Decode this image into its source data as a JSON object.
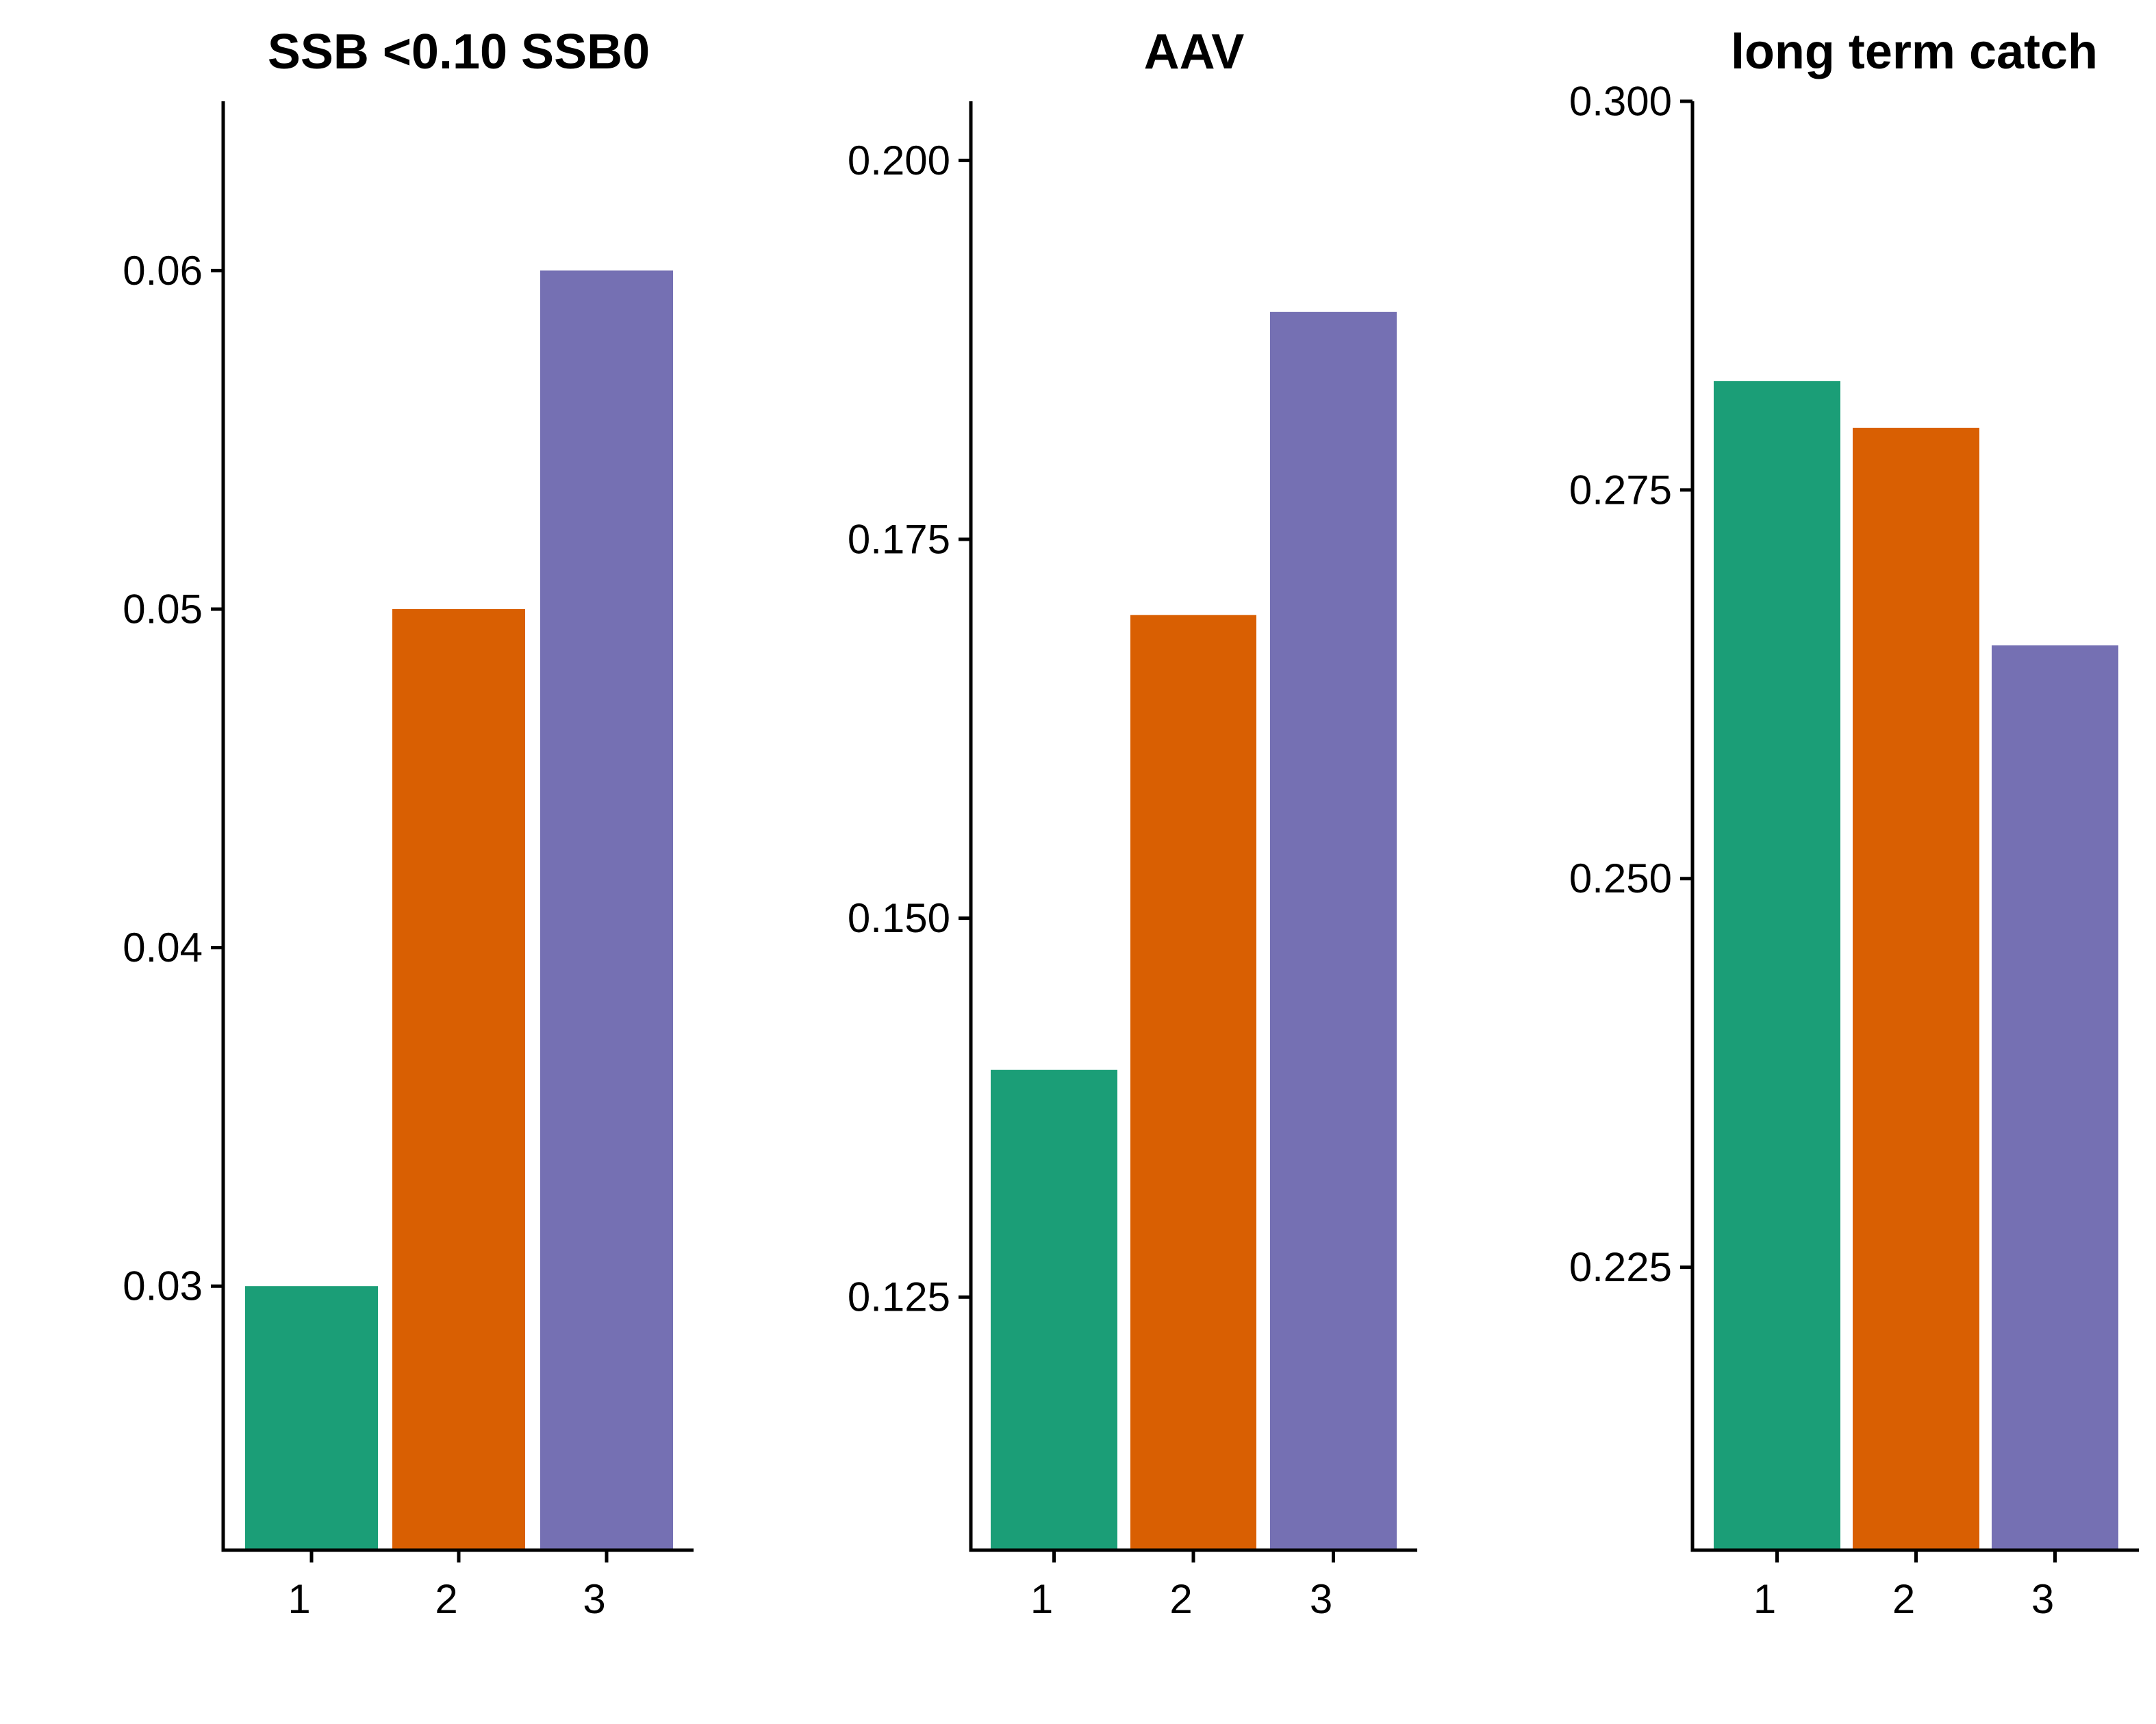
{
  "chart_data": [
    {
      "type": "bar",
      "title": "SSB <0.10 SSB0",
      "xlabel": "",
      "ylabel": "",
      "categories": [
        "1",
        "2",
        "3"
      ],
      "values": [
        0.03,
        0.05,
        0.06
      ],
      "colors": [
        "#1b9e77",
        "#d95f02",
        "#7570b3"
      ],
      "ylim": [
        0.0222,
        0.065
      ],
      "yticks": [
        0.03,
        0.04,
        0.05,
        0.06
      ],
      "ytick_labels": [
        "0.03",
        "0.04",
        "0.05",
        "0.06"
      ],
      "grid": false,
      "legend": "none"
    },
    {
      "type": "bar",
      "title": "AAV",
      "xlabel": "",
      "ylabel": "",
      "categories": [
        "1",
        "2",
        "3"
      ],
      "values": [
        0.14,
        0.17,
        0.19
      ],
      "colors": [
        "#1b9e77",
        "#d95f02",
        "#7570b3"
      ],
      "ylim": [
        0.1083,
        0.2039
      ],
      "yticks": [
        0.125,
        0.15,
        0.175,
        0.2
      ],
      "ytick_labels": [
        "0.125",
        "0.150",
        "0.175",
        "0.200"
      ],
      "grid": false,
      "legend": "none"
    },
    {
      "type": "bar",
      "title": "long term catch",
      "xlabel": "",
      "ylabel": "",
      "categories": [
        "1",
        "2",
        "3"
      ],
      "values": [
        0.282,
        0.279,
        0.265
      ],
      "colors": [
        "#1b9e77",
        "#d95f02",
        "#7570b3"
      ],
      "ylim": [
        0.2068,
        0.3
      ],
      "yticks": [
        0.225,
        0.25,
        0.275,
        0.3
      ],
      "ytick_labels": [
        "0.225",
        "0.250",
        "0.275",
        "0.300"
      ],
      "grid": false,
      "legend": "none"
    }
  ]
}
